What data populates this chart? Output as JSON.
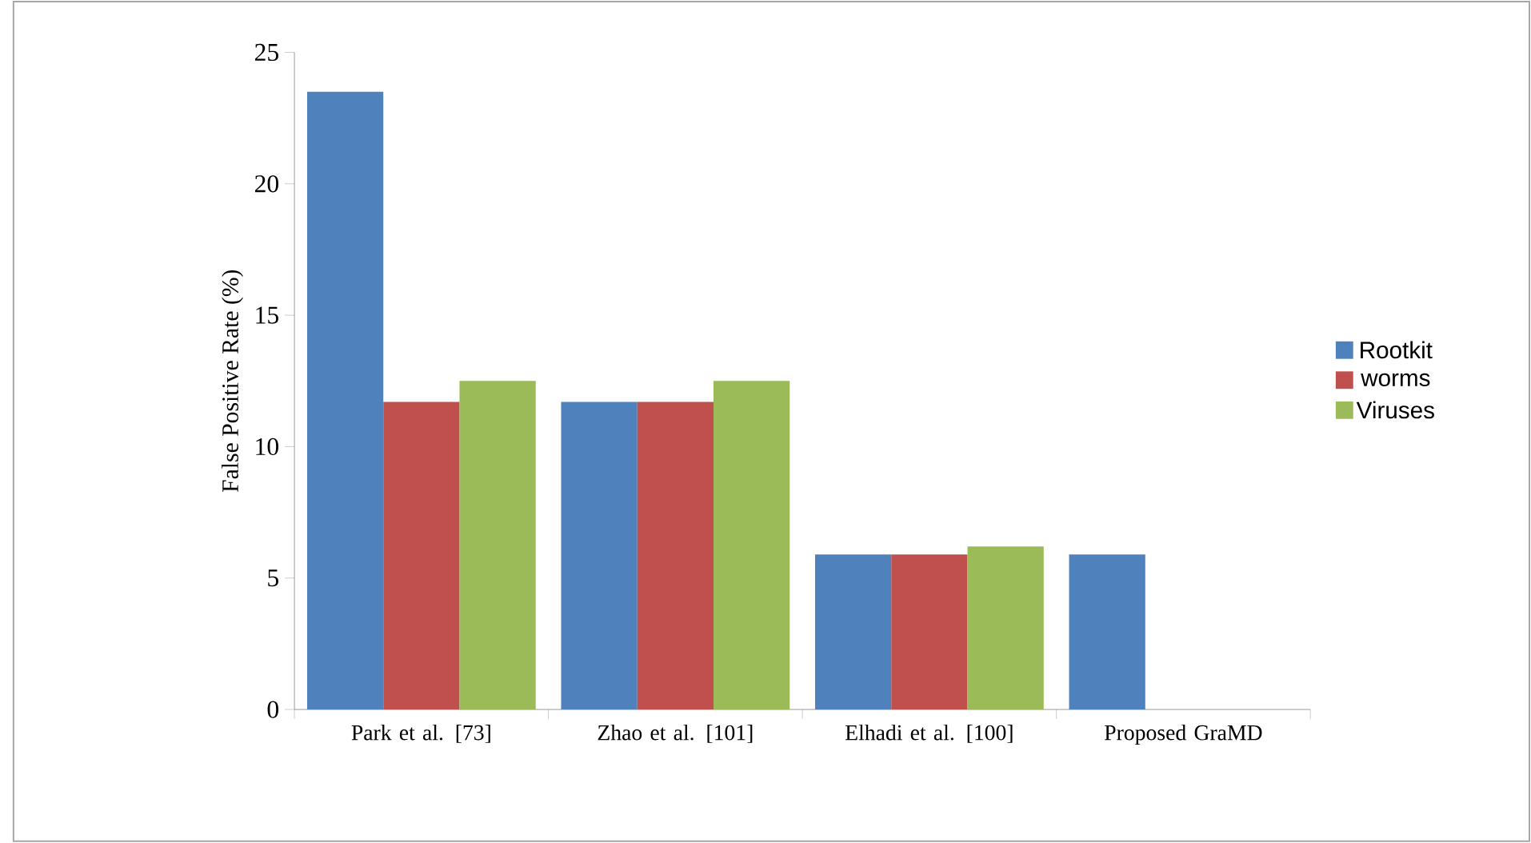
{
  "chart_data": {
    "type": "bar",
    "ylabel": "False Positive Rate (%)",
    "categories": [
      "Park et al. [73]",
      "Zhao et al. [101]",
      "Elhadi et al. [100]",
      "Proposed GraMD"
    ],
    "series": [
      {
        "name": "Rootkit",
        "color": "#4f81bd",
        "values": [
          23.5,
          11.7,
          5.9,
          5.9
        ]
      },
      {
        "name": "worms",
        "color": "#c0504d",
        "values": [
          11.7,
          11.7,
          5.9,
          null
        ]
      },
      {
        "name": "Viruses",
        "color": "#9bbb59",
        "values": [
          12.5,
          12.5,
          6.2,
          null
        ]
      }
    ],
    "ylim": [
      0,
      25
    ],
    "yticks": [
      0,
      5,
      10,
      15,
      20,
      25
    ],
    "legend": "right"
  }
}
